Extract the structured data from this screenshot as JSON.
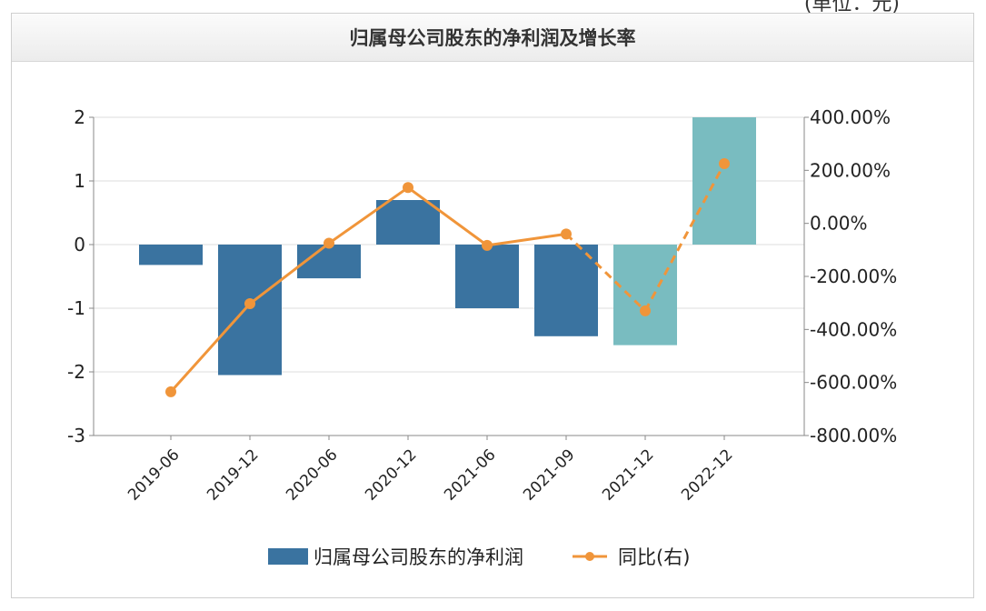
{
  "top_unit": "(单位：元)",
  "chart_data": {
    "title": "归属母公司股东的净利润及增长率",
    "type": "bar",
    "categories": [
      "2019-06",
      "2019-12",
      "2020-06",
      "2020-12",
      "2021-06",
      "2021-09",
      "2021-12",
      "2022-12"
    ],
    "series": [
      {
        "name": "归属母公司股东的净利润",
        "type": "bar",
        "axis": "left",
        "values": [
          -0.32,
          -2.05,
          -0.53,
          0.7,
          -1.0,
          -1.44,
          -1.58,
          2.0
        ],
        "colors": [
          "#3a73a0",
          "#3a73a0",
          "#3a73a0",
          "#3a73a0",
          "#3a73a0",
          "#3a73a0",
          "#79bcc0",
          "#79bcc0"
        ]
      },
      {
        "name": "同比(右)",
        "type": "line",
        "axis": "right",
        "values": [
          -635,
          -303,
          -75,
          135,
          -83,
          -40,
          -330,
          225
        ],
        "unit": "%",
        "color": "#f0953a",
        "dashed_from_index": 5
      }
    ],
    "y_left": {
      "min": -3,
      "max": 2,
      "ticks": [
        2,
        1,
        0,
        -1,
        -2,
        -3
      ]
    },
    "y_right": {
      "min": -800,
      "max": 400,
      "ticks": [
        "400.00%",
        "200.00%",
        "0.00%",
        "-200.00%",
        "-400.00%",
        "-600.00%",
        "-800.00%"
      ]
    },
    "grid": true,
    "legend_position": "bottom"
  }
}
